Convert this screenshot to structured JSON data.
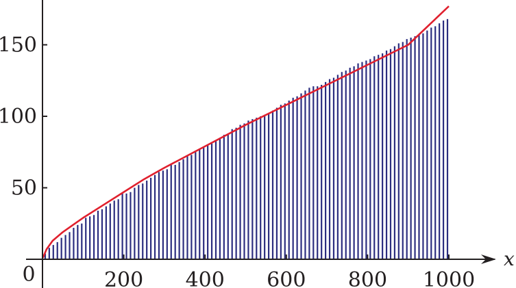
{
  "chart_data": {
    "type": "bar",
    "title": "",
    "xlabel": "x",
    "ylabel": "",
    "xlim": [
      0,
      1000
    ],
    "ylim": [
      0,
      175
    ],
    "origin_label": "0",
    "x_ticks": [
      200,
      400,
      600,
      800,
      1000
    ],
    "x_tick_labels": [
      "200",
      "400",
      "600",
      "800",
      "1000"
    ],
    "y_ticks": [
      50,
      100,
      150
    ],
    "y_tick_labels": [
      "50",
      "100",
      "150"
    ],
    "grid": false,
    "legend": "none",
    "colors": {
      "bars": "#2b2d7f",
      "curve": "#e0202e",
      "axis": "#231f20"
    },
    "series": [
      {
        "type": "step-bars",
        "description_units": "prime-counting-like staircase",
        "x": [
          10,
          20,
          30,
          40,
          50,
          60,
          70,
          80,
          90,
          100,
          110,
          120,
          130,
          140,
          150,
          160,
          170,
          180,
          190,
          200,
          210,
          220,
          230,
          240,
          250,
          260,
          270,
          280,
          290,
          300,
          310,
          320,
          330,
          340,
          350,
          360,
          370,
          380,
          390,
          400,
          410,
          420,
          430,
          440,
          450,
          460,
          470,
          480,
          490,
          500,
          510,
          520,
          530,
          540,
          550,
          560,
          570,
          580,
          590,
          600,
          610,
          620,
          630,
          640,
          650,
          660,
          670,
          680,
          690,
          700,
          710,
          720,
          730,
          740,
          750,
          760,
          770,
          780,
          790,
          800,
          810,
          820,
          830,
          840,
          850,
          860,
          870,
          880,
          890,
          900,
          910,
          920,
          930,
          940,
          950,
          960,
          970,
          980,
          990,
          1000
        ],
        "values": [
          4,
          8,
          10,
          12,
          15,
          17,
          19,
          22,
          24,
          25,
          29,
          30,
          31,
          34,
          35,
          37,
          39,
          41,
          42,
          46,
          46,
          47,
          50,
          52,
          53,
          55,
          57,
          59,
          61,
          62,
          63,
          66,
          66,
          68,
          70,
          72,
          73,
          75,
          77,
          78,
          80,
          81,
          83,
          85,
          87,
          88,
          91,
          92,
          94,
          95,
          97,
          98,
          99,
          100,
          101,
          102,
          104,
          106,
          108,
          109,
          111,
          113,
          114,
          116,
          118,
          120,
          121,
          121,
          122,
          124,
          126,
          127,
          129,
          131,
          132,
          134,
          135,
          137,
          138,
          139,
          140,
          142,
          143,
          144,
          146,
          147,
          149,
          151,
          152,
          154,
          155,
          156,
          157,
          158,
          160,
          162,
          163,
          165,
          167,
          168
        ]
      },
      {
        "type": "line",
        "x": [
          1,
          10,
          25,
          50,
          75,
          100,
          150,
          200,
          250,
          300,
          400,
          500,
          600,
          700,
          800,
          900,
          1000
        ],
        "values": [
          1,
          7,
          13,
          19,
          24,
          29,
          38,
          47,
          56,
          64,
          79,
          94,
          108,
          122,
          136,
          150,
          177
        ]
      }
    ]
  }
}
